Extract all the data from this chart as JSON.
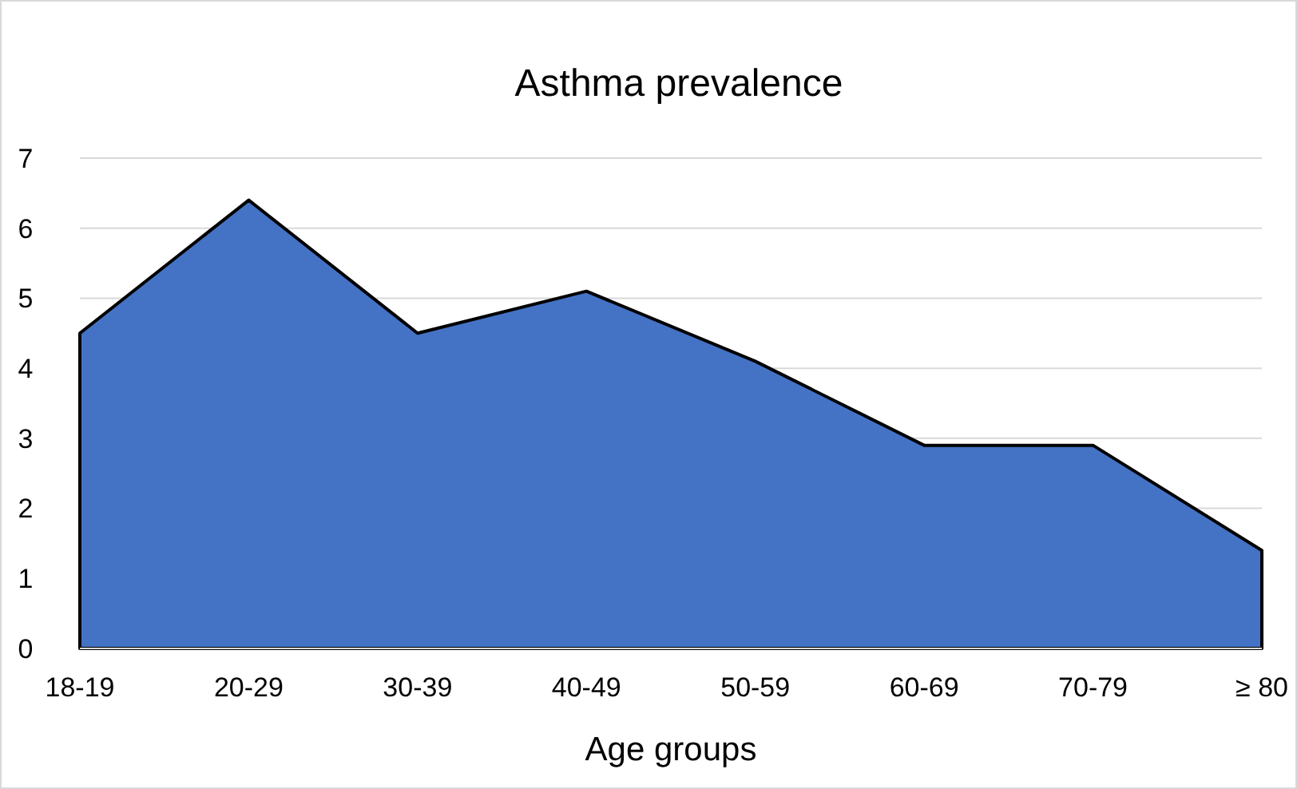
{
  "chart_data": {
    "type": "area",
    "title": "Asthma prevalence",
    "xlabel": "Age groups",
    "categories": [
      "18-19",
      "20-29",
      "30-39",
      "40-49",
      "50-59",
      "60-69",
      "70-79",
      "≥ 80"
    ],
    "series": [
      {
        "color": "#4472c4",
        "values": [
          4.5,
          6.4,
          4.5,
          5.1,
          4.1,
          2.9,
          2.9,
          1.4
        ]
      }
    ],
    "ylim": [
      0,
      7
    ],
    "yticks": [
      0,
      1,
      2,
      3,
      4,
      5,
      6,
      7
    ],
    "grid": "y"
  }
}
